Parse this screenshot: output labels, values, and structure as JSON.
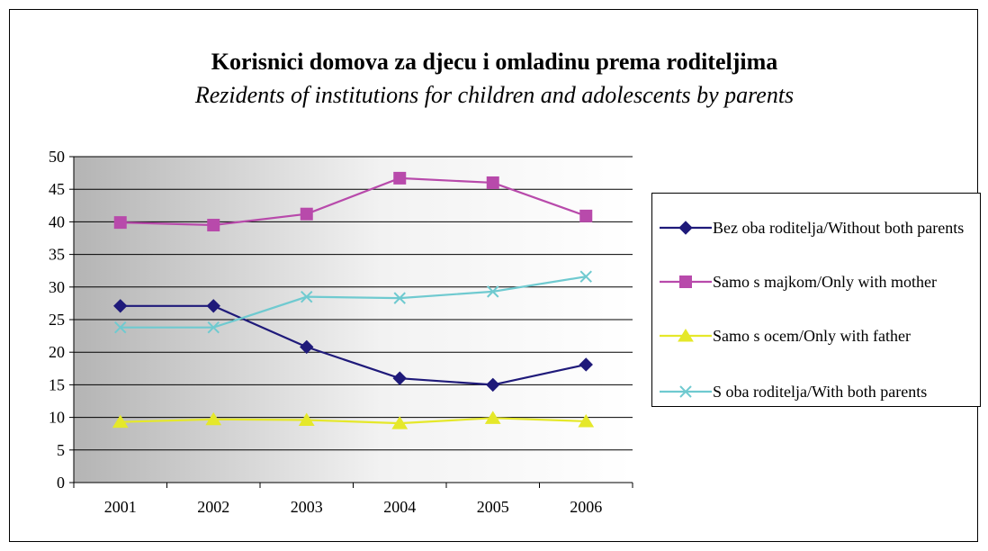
{
  "chart_data": {
    "type": "line",
    "title": "Korisnici domova za djecu i omladinu prema roditeljima",
    "subtitle": "Rezidents of institutions for children and adolescents by parents",
    "categories": [
      "2001",
      "2002",
      "2003",
      "2004",
      "2005",
      "2006"
    ],
    "ylim": [
      0,
      50
    ],
    "yticks": [
      0,
      5,
      10,
      15,
      20,
      25,
      30,
      35,
      40,
      45,
      50
    ],
    "grid": true,
    "legend_position": "right",
    "series": [
      {
        "name": "Bez oba roditelja/Without both parents",
        "color": "#1f1a7a",
        "marker": "diamond",
        "values": [
          27.1,
          27.1,
          20.8,
          16.0,
          15.0,
          18.1
        ]
      },
      {
        "name": "Samo s majkom/Only with mother",
        "color": "#b84aab",
        "marker": "square",
        "values": [
          39.9,
          39.5,
          41.2,
          46.7,
          46.0,
          40.9
        ]
      },
      {
        "name": "Samo s ocem/Only with father",
        "color": "#e5e82a",
        "marker": "triangle",
        "values": [
          9.3,
          9.7,
          9.6,
          9.1,
          9.9,
          9.4
        ]
      },
      {
        "name": "S oba roditelja/With both parents",
        "color": "#6fcad0",
        "marker": "x",
        "values": [
          23.8,
          23.8,
          28.5,
          28.3,
          29.3,
          31.6
        ]
      }
    ]
  }
}
